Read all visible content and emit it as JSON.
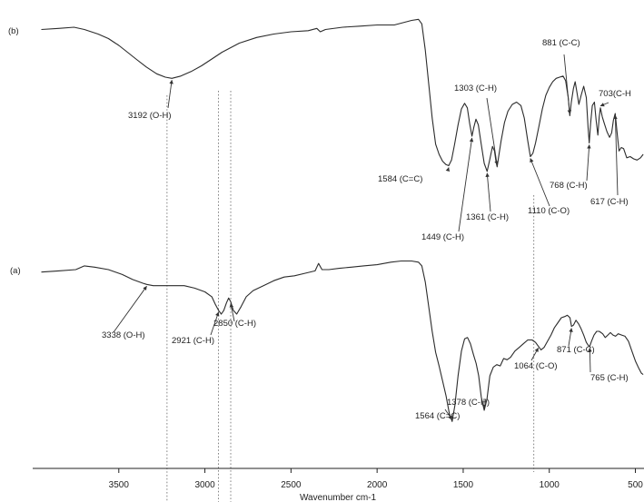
{
  "chart_data": {
    "type": "line",
    "xlabel": "Wavenumber cm-1",
    "ylabel": "",
    "xlim": [
      4000,
      450
    ],
    "x_reversed": true,
    "grid": false,
    "xticks": [
      3500,
      3000,
      2500,
      2000,
      1500,
      1000,
      500
    ],
    "xtick_labels": [
      "3500",
      "3000",
      "2500",
      "2000",
      "1500",
      "1000",
      "500"
    ],
    "series": [
      {
        "name": "(b)",
        "baseline": 0.0,
        "points": [
          [
            3950,
            0.02
          ],
          [
            3850,
            0.01
          ],
          [
            3760,
            0.0
          ],
          [
            3700,
            0.02
          ],
          [
            3620,
            0.06
          ],
          [
            3560,
            0.1
          ],
          [
            3500,
            0.16
          ],
          [
            3450,
            0.22
          ],
          [
            3400,
            0.28
          ],
          [
            3340,
            0.35
          ],
          [
            3280,
            0.41
          ],
          [
            3230,
            0.44
          ],
          [
            3192,
            0.45
          ],
          [
            3140,
            0.43
          ],
          [
            3080,
            0.39
          ],
          [
            3020,
            0.34
          ],
          [
            2960,
            0.28
          ],
          [
            2900,
            0.22
          ],
          [
            2850,
            0.18
          ],
          [
            2800,
            0.14
          ],
          [
            2700,
            0.09
          ],
          [
            2600,
            0.06
          ],
          [
            2500,
            0.04
          ],
          [
            2400,
            0.03
          ],
          [
            2350,
            0.01
          ],
          [
            2330,
            0.04
          ],
          [
            2300,
            0.02
          ],
          [
            2200,
            0.0
          ],
          [
            2100,
            -0.01
          ],
          [
            2000,
            -0.02
          ],
          [
            1900,
            -0.02
          ],
          [
            1850,
            -0.04
          ],
          [
            1800,
            -0.06
          ],
          [
            1760,
            -0.07
          ],
          [
            1740,
            -0.03
          ],
          [
            1720,
            0.2
          ],
          [
            1700,
            0.5
          ],
          [
            1680,
            0.8
          ],
          [
            1660,
            1.03
          ],
          [
            1640,
            1.12
          ],
          [
            1620,
            1.18
          ],
          [
            1600,
            1.21
          ],
          [
            1584,
            1.22
          ],
          [
            1568,
            1.17
          ],
          [
            1550,
            1.03
          ],
          [
            1530,
            0.86
          ],
          [
            1510,
            0.72
          ],
          [
            1492,
            0.67
          ],
          [
            1476,
            0.71
          ],
          [
            1462,
            0.85
          ],
          [
            1449,
            0.96
          ],
          [
            1438,
            0.88
          ],
          [
            1426,
            0.81
          ],
          [
            1412,
            0.86
          ],
          [
            1395,
            1.03
          ],
          [
            1378,
            1.2
          ],
          [
            1361,
            1.27
          ],
          [
            1346,
            1.17
          ],
          [
            1330,
            1.05
          ],
          [
            1318,
            1.09
          ],
          [
            1310,
            1.18
          ],
          [
            1303,
            1.23
          ],
          [
            1294,
            1.14
          ],
          [
            1280,
            1.0
          ],
          [
            1260,
            0.84
          ],
          [
            1240,
            0.74
          ],
          [
            1215,
            0.68
          ],
          [
            1190,
            0.66
          ],
          [
            1165,
            0.69
          ],
          [
            1145,
            0.8
          ],
          [
            1125,
            1.0
          ],
          [
            1110,
            1.14
          ],
          [
            1095,
            1.11
          ],
          [
            1080,
            1.02
          ],
          [
            1060,
            0.87
          ],
          [
            1040,
            0.72
          ],
          [
            1020,
            0.6
          ],
          [
            1000,
            0.53
          ],
          [
            980,
            0.48
          ],
          [
            960,
            0.45
          ],
          [
            940,
            0.44
          ],
          [
            920,
            0.43
          ],
          [
            905,
            0.47
          ],
          [
            890,
            0.62
          ],
          [
            881,
            0.78
          ],
          [
            872,
            0.66
          ],
          [
            860,
            0.54
          ],
          [
            850,
            0.48
          ],
          [
            840,
            0.57
          ],
          [
            828,
            0.68
          ],
          [
            815,
            0.6
          ],
          [
            800,
            0.52
          ],
          [
            785,
            0.62
          ],
          [
            775,
            0.88
          ],
          [
            768,
            1.02
          ],
          [
            760,
            0.85
          ],
          [
            750,
            0.69
          ],
          [
            738,
            0.66
          ],
          [
            728,
            0.82
          ],
          [
            718,
            0.95
          ],
          [
            710,
            0.79
          ],
          [
            703,
            0.71
          ],
          [
            692,
            0.79
          ],
          [
            680,
            0.85
          ],
          [
            665,
            0.92
          ],
          [
            650,
            0.97
          ],
          [
            638,
            0.93
          ],
          [
            628,
            0.82
          ],
          [
            617,
            0.76
          ],
          [
            606,
            0.93
          ],
          [
            595,
            1.09
          ],
          [
            582,
            1.06
          ],
          [
            568,
            1.07
          ],
          [
            550,
            1.15
          ],
          [
            530,
            1.14
          ],
          [
            510,
            1.16
          ],
          [
            490,
            1.17
          ],
          [
            470,
            1.15
          ],
          [
            455,
            1.12
          ]
        ]
      },
      {
        "name": "(a)",
        "baseline": 0.0,
        "points": [
          [
            3950,
            0.02
          ],
          [
            3850,
            0.01
          ],
          [
            3750,
            0.0
          ],
          [
            3700,
            -0.03
          ],
          [
            3640,
            -0.02
          ],
          [
            3560,
            0.0
          ],
          [
            3480,
            0.04
          ],
          [
            3420,
            0.08
          ],
          [
            3360,
            0.11
          ],
          [
            3338,
            0.12
          ],
          [
            3300,
            0.13
          ],
          [
            3240,
            0.13
          ],
          [
            3180,
            0.13
          ],
          [
            3120,
            0.13
          ],
          [
            3060,
            0.15
          ],
          [
            3000,
            0.18
          ],
          [
            2960,
            0.22
          ],
          [
            2940,
            0.28
          ],
          [
            2921,
            0.33
          ],
          [
            2905,
            0.36
          ],
          [
            2890,
            0.33
          ],
          [
            2875,
            0.27
          ],
          [
            2862,
            0.23
          ],
          [
            2850,
            0.26
          ],
          [
            2835,
            0.33
          ],
          [
            2815,
            0.36
          ],
          [
            2790,
            0.3
          ],
          [
            2760,
            0.22
          ],
          [
            2720,
            0.17
          ],
          [
            2660,
            0.13
          ],
          [
            2600,
            0.09
          ],
          [
            2540,
            0.06
          ],
          [
            2480,
            0.05
          ],
          [
            2420,
            0.03
          ],
          [
            2360,
            0.01
          ],
          [
            2340,
            -0.05
          ],
          [
            2320,
            0.0
          ],
          [
            2280,
            0.0
          ],
          [
            2220,
            -0.01
          ],
          [
            2150,
            -0.02
          ],
          [
            2080,
            -0.03
          ],
          [
            2000,
            -0.04
          ],
          [
            1920,
            -0.06
          ],
          [
            1860,
            -0.07
          ],
          [
            1800,
            -0.07
          ],
          [
            1760,
            -0.06
          ],
          [
            1740,
            -0.03
          ],
          [
            1720,
            0.1
          ],
          [
            1700,
            0.3
          ],
          [
            1680,
            0.5
          ],
          [
            1660,
            0.67
          ],
          [
            1640,
            0.78
          ],
          [
            1620,
            0.9
          ],
          [
            1600,
            1.02
          ],
          [
            1580,
            1.17
          ],
          [
            1564,
            1.23
          ],
          [
            1548,
            1.1
          ],
          [
            1530,
            0.86
          ],
          [
            1510,
            0.66
          ],
          [
            1492,
            0.56
          ],
          [
            1475,
            0.55
          ],
          [
            1458,
            0.6
          ],
          [
            1440,
            0.69
          ],
          [
            1425,
            0.76
          ],
          [
            1410,
            0.86
          ],
          [
            1395,
            1.03
          ],
          [
            1378,
            1.14
          ],
          [
            1362,
            1.05
          ],
          [
            1345,
            0.86
          ],
          [
            1325,
            0.79
          ],
          [
            1305,
            0.77
          ],
          [
            1285,
            0.78
          ],
          [
            1265,
            0.72
          ],
          [
            1245,
            0.73
          ],
          [
            1225,
            0.71
          ],
          [
            1200,
            0.66
          ],
          [
            1175,
            0.63
          ],
          [
            1150,
            0.6
          ],
          [
            1125,
            0.57
          ],
          [
            1100,
            0.57
          ],
          [
            1080,
            0.59
          ],
          [
            1064,
            0.62
          ],
          [
            1048,
            0.65
          ],
          [
            1030,
            0.63
          ],
          [
            1010,
            0.58
          ],
          [
            990,
            0.53
          ],
          [
            970,
            0.47
          ],
          [
            950,
            0.43
          ],
          [
            930,
            0.39
          ],
          [
            910,
            0.38
          ],
          [
            895,
            0.37
          ],
          [
            880,
            0.39
          ],
          [
            871,
            0.46
          ],
          [
            860,
            0.45
          ],
          [
            845,
            0.41
          ],
          [
            830,
            0.44
          ],
          [
            815,
            0.48
          ],
          [
            800,
            0.53
          ],
          [
            785,
            0.59
          ],
          [
            770,
            0.62
          ],
          [
            765,
            0.62
          ],
          [
            755,
            0.58
          ],
          [
            740,
            0.53
          ],
          [
            725,
            0.5
          ],
          [
            710,
            0.5
          ],
          [
            690,
            0.52
          ],
          [
            675,
            0.55
          ],
          [
            660,
            0.53
          ],
          [
            645,
            0.51
          ],
          [
            630,
            0.53
          ],
          [
            615,
            0.54
          ],
          [
            600,
            0.52
          ],
          [
            580,
            0.53
          ],
          [
            560,
            0.54
          ],
          [
            540,
            0.58
          ],
          [
            520,
            0.66
          ],
          [
            500,
            0.74
          ],
          [
            480,
            0.8
          ],
          [
            465,
            0.84
          ],
          [
            455,
            0.85
          ]
        ]
      }
    ],
    "annotations": [
      {
        "series": 0,
        "x": 3192,
        "label": "3192 (O-H)"
      },
      {
        "series": 0,
        "x": 1584,
        "label": "1584 (C=C)"
      },
      {
        "series": 0,
        "x": 1449,
        "label": "1449 (C-H)"
      },
      {
        "series": 0,
        "x": 1361,
        "label": "1361 (C-H)"
      },
      {
        "series": 0,
        "x": 1303,
        "label": "1303 (C-H)"
      },
      {
        "series": 0,
        "x": 1110,
        "label": "1110 (C-O)"
      },
      {
        "series": 0,
        "x": 881,
        "label": "881 (C-C)"
      },
      {
        "series": 0,
        "x": 768,
        "label": "768 (C-H)"
      },
      {
        "series": 0,
        "x": 703,
        "label": "703(C-H"
      },
      {
        "series": 0,
        "x": 617,
        "label": "617 (C-H)"
      },
      {
        "series": 1,
        "x": 3338,
        "label": "3338 (O-H)"
      },
      {
        "series": 1,
        "x": 2921,
        "label": "2921 (C-H)"
      },
      {
        "series": 1,
        "x": 2850,
        "label": "2850 (C-H)"
      },
      {
        "series": 1,
        "x": 1564,
        "label": "1564 (C=C)"
      },
      {
        "series": 1,
        "x": 1378,
        "label": "1378 (C-H)"
      },
      {
        "series": 1,
        "x": 1064,
        "label": "1064 (C-O)"
      },
      {
        "series": 1,
        "x": 871,
        "label": "871 (C-C)"
      },
      {
        "series": 1,
        "x": 765,
        "label": "765 (C-H)"
      }
    ],
    "reference_lines_x": [
      3220,
      2921,
      2850,
      1090
    ]
  }
}
